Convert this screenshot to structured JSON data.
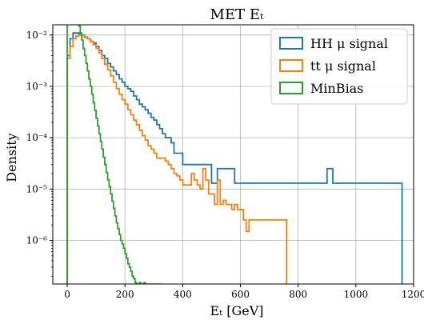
{
  "chart_data": {
    "type": "step-histogram",
    "title": "MET Eₜ",
    "xlabel": "Eₜ [GeV]",
    "ylabel": "Density",
    "xlim": [
      -50,
      1200
    ],
    "ylim_log10": [
      -6.85,
      -1.8
    ],
    "y_scale": "log",
    "grid": true,
    "legend_position": "top-right",
    "x_ticks": [
      0,
      200,
      400,
      600,
      800,
      1000,
      1200
    ],
    "x_tick_labels": [
      "0",
      "200",
      "400",
      "600",
      "800",
      "1000",
      "1200"
    ],
    "y_ticks_exp": [
      -6,
      -5,
      -4,
      -3,
      -2
    ],
    "y_tick_labels": [
      "10⁻⁶",
      "10⁻⁵",
      "10⁻⁴",
      "10⁻³",
      "10⁻²"
    ],
    "series": [
      {
        "name": "HH μ signal",
        "color": "#1f77b4",
        "points": [
          [
            0,
            0.004
          ],
          [
            10,
            0.0085
          ],
          [
            20,
            0.011
          ],
          [
            30,
            0.011
          ],
          [
            40,
            0.0105
          ],
          [
            50,
            0.01
          ],
          [
            60,
            0.009
          ],
          [
            70,
            0.0085
          ],
          [
            80,
            0.0075
          ],
          [
            90,
            0.007
          ],
          [
            100,
            0.006
          ],
          [
            110,
            0.005
          ],
          [
            120,
            0.004
          ],
          [
            130,
            0.0035
          ],
          [
            140,
            0.0028
          ],
          [
            150,
            0.0024
          ],
          [
            160,
            0.002
          ],
          [
            170,
            0.0017
          ],
          [
            180,
            0.0014
          ],
          [
            190,
            0.0012
          ],
          [
            200,
            0.001
          ],
          [
            210,
            0.0009
          ],
          [
            220,
            0.0008
          ],
          [
            230,
            0.00065
          ],
          [
            240,
            0.00055
          ],
          [
            250,
            0.00045
          ],
          [
            260,
            0.0004
          ],
          [
            270,
            0.00035
          ],
          [
            280,
            0.0003
          ],
          [
            290,
            0.00025
          ],
          [
            300,
            0.00022
          ],
          [
            310,
            0.00018
          ],
          [
            320,
            0.00015
          ],
          [
            330,
            0.00012
          ],
          [
            340,
            0.0001
          ],
          [
            350,
            0.0001
          ],
          [
            360,
            8e-05
          ],
          [
            370,
            5e-05
          ],
          [
            380,
            5e-05
          ],
          [
            390,
            5e-05
          ],
          [
            400,
            3e-05
          ],
          [
            410,
            3e-05
          ],
          [
            420,
            3e-05
          ],
          [
            430,
            3e-05
          ],
          [
            440,
            3e-05
          ],
          [
            450,
            3e-05
          ],
          [
            460,
            3e-05
          ],
          [
            470,
            3e-05
          ],
          [
            480,
            3e-05
          ],
          [
            490,
            3e-05
          ],
          [
            500,
            1.3e-05
          ],
          [
            510,
            1.3e-05
          ],
          [
            520,
            2.5e-05
          ],
          [
            530,
            2.5e-05
          ],
          [
            540,
            2.5e-05
          ],
          [
            550,
            2.5e-05
          ],
          [
            560,
            2.5e-05
          ],
          [
            570,
            2.5e-05
          ],
          [
            580,
            1.3e-05
          ],
          [
            590,
            1.3e-05
          ],
          [
            600,
            1.3e-05
          ],
          [
            610,
            1.3e-05
          ],
          [
            620,
            1.3e-05
          ],
          [
            630,
            1.3e-05
          ],
          [
            640,
            1.3e-05
          ],
          [
            650,
            1.3e-05
          ],
          [
            660,
            1.3e-05
          ],
          [
            670,
            1.3e-05
          ],
          [
            680,
            1.3e-05
          ],
          [
            690,
            1.3e-05
          ],
          [
            700,
            1.3e-05
          ],
          [
            710,
            1.3e-05
          ],
          [
            720,
            1.3e-05
          ],
          [
            730,
            1.3e-05
          ],
          [
            740,
            1.3e-05
          ],
          [
            750,
            1.3e-05
          ],
          [
            760,
            1.3e-05
          ],
          [
            770,
            1.3e-05
          ],
          [
            780,
            1.3e-05
          ],
          [
            790,
            1.3e-05
          ],
          [
            800,
            1.3e-05
          ],
          [
            810,
            1.3e-05
          ],
          [
            820,
            1.3e-05
          ],
          [
            830,
            1.3e-05
          ],
          [
            840,
            1.3e-05
          ],
          [
            850,
            1.3e-05
          ],
          [
            860,
            1.3e-05
          ],
          [
            870,
            1.3e-05
          ],
          [
            880,
            1.3e-05
          ],
          [
            890,
            1.3e-05
          ],
          [
            900,
            2.5e-05
          ],
          [
            910,
            2.5e-05
          ],
          [
            920,
            1.3e-05
          ],
          [
            930,
            1.3e-05
          ],
          [
            940,
            1.3e-05
          ],
          [
            950,
            1.3e-05
          ],
          [
            960,
            1.3e-05
          ],
          [
            970,
            1.3e-05
          ],
          [
            980,
            1.3e-05
          ],
          [
            990,
            1.3e-05
          ],
          [
            1000,
            1.3e-05
          ],
          [
            1010,
            1.3e-05
          ],
          [
            1020,
            1.3e-05
          ],
          [
            1030,
            1.3e-05
          ],
          [
            1040,
            1.3e-05
          ],
          [
            1050,
            1.3e-05
          ],
          [
            1060,
            1.3e-05
          ],
          [
            1070,
            1.3e-05
          ],
          [
            1080,
            1.3e-05
          ],
          [
            1090,
            1.3e-05
          ],
          [
            1100,
            1.3e-05
          ],
          [
            1110,
            1.3e-05
          ],
          [
            1120,
            1.3e-05
          ],
          [
            1130,
            1.3e-05
          ],
          [
            1140,
            1.3e-05
          ],
          [
            1150,
            1.3e-05
          ]
        ]
      },
      {
        "name": "tt μ signal",
        "color": "#ff7f0e",
        "points": [
          [
            0,
            0.0035
          ],
          [
            10,
            0.006
          ],
          [
            20,
            0.0085
          ],
          [
            30,
            0.0095
          ],
          [
            40,
            0.01
          ],
          [
            50,
            0.0098
          ],
          [
            60,
            0.0092
          ],
          [
            70,
            0.0085
          ],
          [
            80,
            0.0075
          ],
          [
            90,
            0.0065
          ],
          [
            100,
            0.0055
          ],
          [
            110,
            0.0045
          ],
          [
            120,
            0.0035
          ],
          [
            130,
            0.0027
          ],
          [
            140,
            0.0021
          ],
          [
            150,
            0.0016
          ],
          [
            160,
            0.0012
          ],
          [
            170,
            0.0009
          ],
          [
            180,
            0.0007
          ],
          [
            190,
            0.00055
          ],
          [
            200,
            0.00045
          ],
          [
            210,
            0.00035
          ],
          [
            220,
            0.00028
          ],
          [
            230,
            0.00022
          ],
          [
            240,
            0.00018
          ],
          [
            250,
            0.00014
          ],
          [
            260,
            0.00011
          ],
          [
            270,
            9e-05
          ],
          [
            280,
            7e-05
          ],
          [
            290,
            6e-05
          ],
          [
            300,
            5e-05
          ],
          [
            310,
            4e-05
          ],
          [
            320,
            4e-05
          ],
          [
            330,
            4e-05
          ],
          [
            340,
            3.5e-05
          ],
          [
            350,
            3e-05
          ],
          [
            360,
            2.5e-05
          ],
          [
            370,
            2e-05
          ],
          [
            380,
            1.8e-05
          ],
          [
            390,
            1.5e-05
          ],
          [
            400,
            1.2e-05
          ],
          [
            410,
            1.2e-05
          ],
          [
            420,
            1.2e-05
          ],
          [
            430,
            2e-05
          ],
          [
            440,
            1.5e-05
          ],
          [
            450,
            1.2e-05
          ],
          [
            460,
            1e-05
          ],
          [
            470,
            2.5e-05
          ],
          [
            480,
            1.5e-05
          ],
          [
            490,
            8e-06
          ],
          [
            500,
            8e-06
          ],
          [
            510,
            5e-06
          ],
          [
            520,
            1.5e-05
          ],
          [
            530,
            5e-06
          ],
          [
            540,
            6e-06
          ],
          [
            550,
            5e-06
          ],
          [
            560,
            5e-06
          ],
          [
            570,
            4e-06
          ],
          [
            580,
            5e-06
          ],
          [
            590,
            4e-06
          ],
          [
            600,
            4e-06
          ],
          [
            610,
            2.5e-06
          ],
          [
            620,
            1.5e-06
          ],
          [
            630,
            2.5e-06
          ],
          [
            640,
            2.5e-06
          ],
          [
            650,
            2.5e-06
          ],
          [
            660,
            2.5e-06
          ],
          [
            670,
            2.5e-06
          ],
          [
            680,
            2.5e-06
          ],
          [
            690,
            2.5e-06
          ],
          [
            700,
            2.5e-06
          ],
          [
            710,
            2.5e-06
          ],
          [
            720,
            2.5e-06
          ],
          [
            730,
            2.5e-06
          ],
          [
            740,
            2.5e-06
          ],
          [
            750,
            2.5e-06
          ]
        ]
      },
      {
        "name": "MinBias",
        "color": "#2ca02c",
        "points": [
          [
            0,
            0.02
          ],
          [
            5,
            0.03
          ],
          [
            10,
            0.034
          ],
          [
            15,
            0.036
          ],
          [
            20,
            0.034
          ],
          [
            25,
            0.03
          ],
          [
            30,
            0.025
          ],
          [
            35,
            0.02
          ],
          [
            40,
            0.015
          ],
          [
            45,
            0.011
          ],
          [
            50,
            0.008
          ],
          [
            55,
            0.0055
          ],
          [
            60,
            0.004
          ],
          [
            65,
            0.0028
          ],
          [
            70,
            0.002
          ],
          [
            75,
            0.0014
          ],
          [
            80,
            0.001
          ],
          [
            85,
            0.0007
          ],
          [
            90,
            0.00048
          ],
          [
            95,
            0.00034
          ],
          [
            100,
            0.00024
          ],
          [
            105,
            0.00017
          ],
          [
            110,
            0.00012
          ],
          [
            115,
            8.5e-05
          ],
          [
            120,
            6e-05
          ],
          [
            125,
            4.2e-05
          ],
          [
            130,
            3e-05
          ],
          [
            135,
            2.1e-05
          ],
          [
            140,
            1.5e-05
          ],
          [
            145,
            1.1e-05
          ],
          [
            150,
            8e-06
          ],
          [
            155,
            5.8e-06
          ],
          [
            160,
            4.2e-06
          ],
          [
            165,
            3e-06
          ],
          [
            170,
            2.2e-06
          ],
          [
            175,
            1.7e-06
          ],
          [
            180,
            1.3e-06
          ],
          [
            185,
            1e-06
          ],
          [
            190,
            8.5e-07
          ],
          [
            195,
            7e-07
          ],
          [
            200,
            5.5e-07
          ],
          [
            205,
            4.5e-07
          ],
          [
            210,
            3.5e-07
          ],
          [
            215,
            3e-07
          ],
          [
            220,
            2.5e-07
          ],
          [
            225,
            2e-07
          ],
          [
            230,
            1.8e-07
          ],
          [
            235,
            1.5e-07
          ],
          [
            240,
            1.4e-07
          ],
          [
            245,
            1.4e-07
          ],
          [
            250,
            1.5e-07
          ],
          [
            255,
            1.4e-07
          ],
          [
            260,
            1.4e-07
          ],
          [
            265,
            1.5e-07
          ],
          [
            270,
            1.4e-07
          ],
          [
            275,
            1.4e-07
          ],
          [
            280,
            1.4e-07
          ],
          [
            285,
            1.4e-07
          ],
          [
            290,
            1.4e-07
          ],
          [
            295,
            1.4e-07
          ],
          [
            300,
            1.4e-07
          ],
          [
            305,
            1.4e-07
          ],
          [
            310,
            1.4e-07
          ],
          [
            315,
            1.4e-07
          ],
          [
            320,
            1.4e-07
          ]
        ]
      }
    ]
  }
}
